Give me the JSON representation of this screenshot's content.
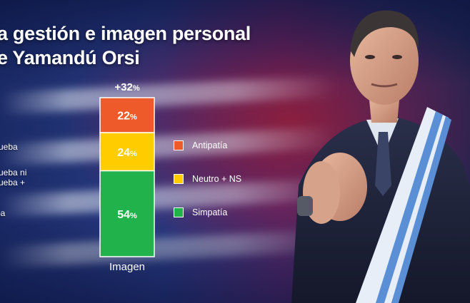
{
  "title": {
    "line1": "a gestión e imagen personal",
    "line2": "e Yamandú Orsi"
  },
  "row_labels": [
    "rueba",
    "rueba ni",
    "rueba +",
    "ba"
  ],
  "difference_label": "+32",
  "difference_unit": "%",
  "colors": {
    "antipatia": "#ef5a2a",
    "neutro": "#ffcc00",
    "simpatia": "#22b24c"
  },
  "chart_data": {
    "type": "bar",
    "stacked": true,
    "categories": [
      "Imagen"
    ],
    "series": [
      {
        "name": "Antipatía",
        "values": [
          22
        ],
        "color": "#ef5a2a"
      },
      {
        "name": "Neutro + NS",
        "values": [
          24
        ],
        "color": "#ffcc00"
      },
      {
        "name": "Simpatía",
        "values": [
          54
        ],
        "color": "#22b24c"
      }
    ],
    "unit": "%",
    "xlabel": "Imagen",
    "ylim": [
      0,
      100
    ],
    "legend": "right"
  }
}
